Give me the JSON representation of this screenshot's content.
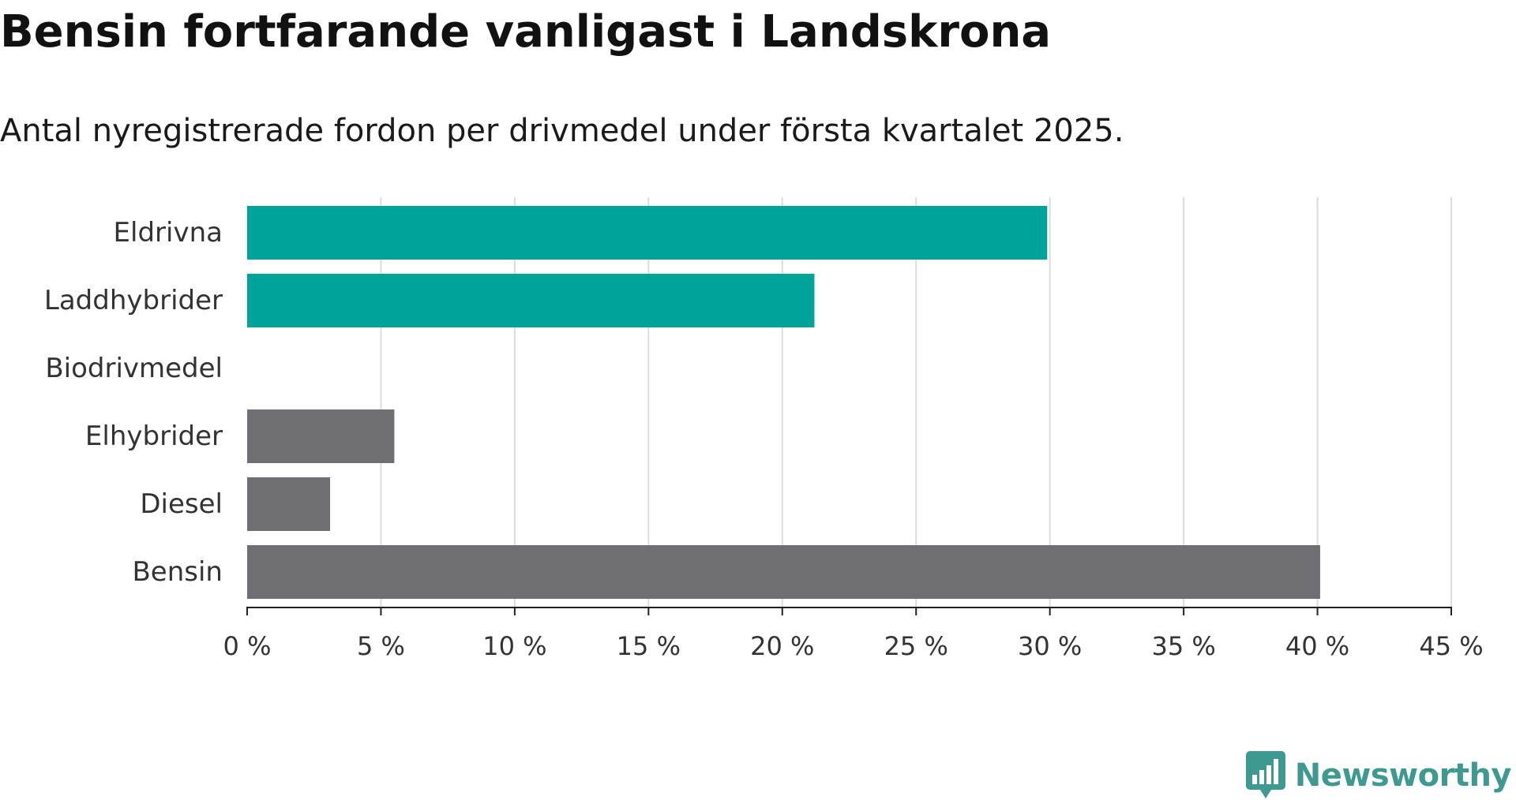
{
  "header": {
    "title": "Bensin fortfarande vanligast i Landskrona",
    "subtitle": "Antal nyregistrerade fordon per drivmedel under första kvartalet 2025."
  },
  "logo": {
    "text": "Newsworthy",
    "icon": "newsworthy-bar-chart-icon",
    "color": "#3e9a91"
  },
  "chart_data": {
    "type": "bar",
    "orientation": "horizontal",
    "categories": [
      "Eldrivna",
      "Laddhybrider",
      "Biodrivmedel",
      "Elhybrider",
      "Diesel",
      "Bensin"
    ],
    "values": [
      29.9,
      21.2,
      0,
      5.5,
      3.1,
      40.1
    ],
    "bar_colors": [
      "#00a39a",
      "#00a39a",
      "#00a39a",
      "#6e6e73",
      "#6e6e73",
      "#6e6e73"
    ],
    "xlim": [
      0,
      45
    ],
    "ticks": [
      0,
      5,
      10,
      15,
      20,
      25,
      30,
      35,
      40,
      45
    ],
    "tick_labels": [
      "0 %",
      "5 %",
      "10 %",
      "15 %",
      "20 %",
      "25 %",
      "30 %",
      "35 %",
      "40 %",
      "45 %"
    ],
    "grid": true,
    "legend": "none"
  }
}
